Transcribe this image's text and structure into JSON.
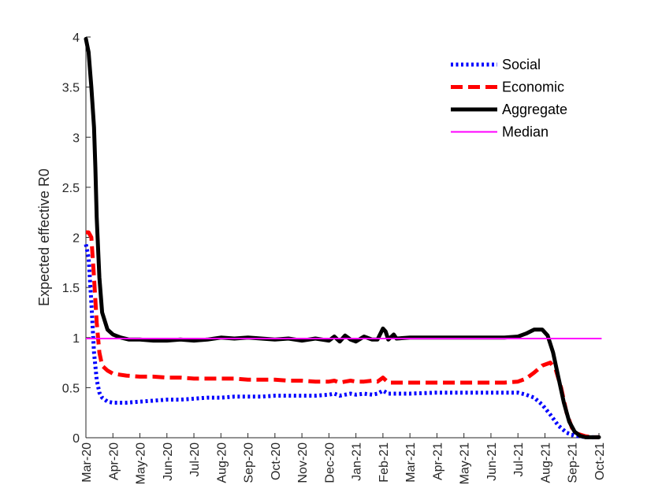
{
  "chart_data": {
    "type": "line",
    "title": "",
    "xlabel": "",
    "ylabel": "Expected effective R0",
    "ylim": [
      0,
      4
    ],
    "yticks": [
      0,
      0.5,
      1,
      1.5,
      2,
      2.5,
      3,
      3.5,
      4
    ],
    "ytick_labels": [
      "0",
      "0.5",
      "1",
      "1.5",
      "2",
      "2.5",
      "3",
      "3.5",
      "4"
    ],
    "xlim": [
      0,
      19
    ],
    "xticks": [
      0,
      1,
      2,
      3,
      4,
      5,
      6,
      7,
      8,
      9,
      10,
      11,
      12,
      13,
      14,
      15,
      16,
      17,
      18,
      19
    ],
    "xtick_labels": [
      "Mar-20",
      "Apr-20",
      "May-20",
      "Jun-20",
      "Jul-20",
      "Aug-20",
      "Sep-20",
      "Oct-20",
      "Nov-20",
      "Dec-20",
      "Jan-21",
      "Feb-21",
      "Mar-21",
      "Apr-21",
      "May-21",
      "Jun-21",
      "Jul-21",
      "Aug-21",
      "Sep-21",
      "Oct-21"
    ],
    "grid": false,
    "legend_position": "top-right",
    "series": [
      {
        "name": "Social",
        "color": "#0000ff",
        "style": "dotted",
        "x": [
          0,
          0.1,
          0.2,
          0.3,
          0.4,
          0.5,
          0.6,
          0.8,
          1.0,
          1.5,
          2,
          2.5,
          3,
          3.5,
          4,
          4.5,
          5,
          5.5,
          6,
          6.5,
          7,
          7.5,
          8,
          8.5,
          9,
          9.2,
          9.4,
          9.6,
          9.8,
          10,
          10.3,
          10.6,
          10.8,
          11,
          11.2,
          11.5,
          12,
          13,
          14,
          15,
          15.5,
          16,
          16.3,
          16.6,
          16.9,
          17.2,
          17.5,
          17.8,
          18.1,
          18.4,
          18.7,
          19
        ],
        "values": [
          1.93,
          1.8,
          1.35,
          0.85,
          0.58,
          0.45,
          0.4,
          0.36,
          0.35,
          0.35,
          0.36,
          0.37,
          0.38,
          0.38,
          0.39,
          0.4,
          0.4,
          0.41,
          0.41,
          0.41,
          0.42,
          0.42,
          0.42,
          0.42,
          0.43,
          0.44,
          0.42,
          0.43,
          0.44,
          0.43,
          0.44,
          0.43,
          0.44,
          0.47,
          0.44,
          0.44,
          0.44,
          0.45,
          0.45,
          0.45,
          0.45,
          0.45,
          0.43,
          0.4,
          0.33,
          0.23,
          0.12,
          0.05,
          0.02,
          0.01,
          0.005,
          0.005
        ]
      },
      {
        "name": "Economic",
        "color": "#ff0000",
        "style": "dashed",
        "x": [
          0,
          0.1,
          0.2,
          0.3,
          0.4,
          0.5,
          0.6,
          0.8,
          1.0,
          1.5,
          2,
          2.5,
          3,
          3.5,
          4,
          4.5,
          5,
          5.5,
          6,
          6.5,
          7,
          7.5,
          8,
          8.5,
          9,
          9.2,
          9.4,
          9.6,
          9.8,
          10,
          10.3,
          10.6,
          10.8,
          11,
          11.2,
          11.5,
          12,
          13,
          14,
          15,
          15.5,
          16,
          16.3,
          16.6,
          16.9,
          17.2,
          17.4,
          17.6,
          17.8,
          18.0,
          18.2,
          18.5,
          18.8,
          19
        ],
        "values": [
          2.05,
          2.05,
          2.0,
          1.6,
          1.15,
          0.85,
          0.72,
          0.67,
          0.64,
          0.62,
          0.61,
          0.61,
          0.6,
          0.6,
          0.59,
          0.59,
          0.59,
          0.59,
          0.58,
          0.58,
          0.58,
          0.57,
          0.57,
          0.56,
          0.56,
          0.57,
          0.55,
          0.56,
          0.57,
          0.56,
          0.56,
          0.57,
          0.56,
          0.6,
          0.55,
          0.55,
          0.55,
          0.55,
          0.55,
          0.55,
          0.55,
          0.56,
          0.59,
          0.65,
          0.72,
          0.75,
          0.68,
          0.5,
          0.25,
          0.1,
          0.04,
          0.015,
          0.005,
          0.005
        ]
      },
      {
        "name": "Aggregate",
        "color": "#000000",
        "style": "solid",
        "x": [
          0,
          0.1,
          0.2,
          0.3,
          0.35,
          0.4,
          0.5,
          0.6,
          0.8,
          1.0,
          1.3,
          1.6,
          2,
          2.5,
          3,
          3.5,
          4,
          4.5,
          5,
          5.5,
          6,
          6.5,
          7,
          7.5,
          8,
          8.5,
          9,
          9.2,
          9.4,
          9.6,
          9.8,
          10,
          10.3,
          10.6,
          10.8,
          11,
          11.1,
          11.2,
          11.4,
          11.5,
          12,
          13,
          14,
          15,
          15.5,
          16,
          16.3,
          16.6,
          16.9,
          17.1,
          17.3,
          17.5,
          17.7,
          17.9,
          18.1,
          18.3,
          18.5,
          18.8,
          19
        ],
        "values": [
          3.98,
          3.85,
          3.5,
          3.1,
          2.7,
          2.2,
          1.6,
          1.25,
          1.08,
          1.03,
          1.0,
          0.98,
          0.98,
          0.97,
          0.97,
          0.98,
          0.97,
          0.98,
          1.0,
          0.99,
          1.0,
          0.99,
          0.98,
          0.99,
          0.97,
          0.99,
          0.97,
          1.01,
          0.96,
          1.02,
          0.98,
          0.96,
          1.01,
          0.98,
          0.98,
          1.09,
          1.06,
          0.98,
          1.03,
          0.99,
          1.0,
          1.0,
          1.0,
          1.0,
          1.0,
          1.01,
          1.04,
          1.08,
          1.08,
          1.02,
          0.85,
          0.6,
          0.35,
          0.16,
          0.06,
          0.02,
          0.005,
          0.005,
          0.005
        ]
      },
      {
        "name": "Median",
        "color": "#ff00ff",
        "style": "solid-thin",
        "x": [
          0,
          19.1
        ],
        "values": [
          0.99,
          0.99
        ]
      }
    ]
  }
}
